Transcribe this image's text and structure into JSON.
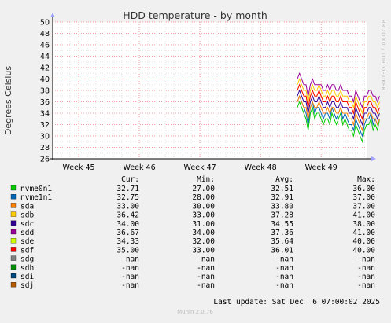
{
  "chart_data": {
    "type": "line",
    "title": "HDD temperature - by month",
    "ylabel": "Degrees Celsius",
    "side_label": "RRDTOOL / TOBI OETIKER",
    "ylim": [
      26,
      50
    ],
    "y_ticks": [
      26,
      28,
      30,
      32,
      34,
      36,
      38,
      40,
      42,
      44,
      46,
      48,
      50
    ],
    "x_ticks": [
      "Week 45",
      "Week 46",
      "Week 47",
      "Week 48",
      "Week 49"
    ],
    "x_tick_days": [
      3,
      10,
      17,
      24,
      31
    ],
    "xlim_days": [
      0,
      36.25
    ],
    "data_start_day": 28.25,
    "data_step_days": 0.25,
    "grid": true,
    "legend_headers": [
      "Cur:",
      "Min:",
      "Avg:",
      "Max:"
    ],
    "series": [
      {
        "name": "nvme0n1",
        "color": "#00cc00",
        "cur": "32.71",
        "min": "27.00",
        "avg": "32.51",
        "max": "36.00",
        "values": [
          35,
          36,
          35,
          34,
          33,
          31,
          34,
          35,
          33,
          34,
          34,
          33,
          32,
          33,
          33,
          32,
          34,
          33,
          32,
          33,
          34,
          32,
          33,
          32,
          31,
          31,
          30,
          32,
          31,
          30,
          29,
          31,
          32,
          32,
          33,
          31,
          32,
          31,
          33
        ]
      },
      {
        "name": "nvme1n1",
        "color": "#0066b3",
        "cur": "32.75",
        "min": "28.00",
        "avg": "32.91",
        "max": "37.00",
        "values": [
          36,
          37,
          36,
          35,
          34,
          32,
          35,
          36,
          34,
          35,
          35,
          34,
          33,
          34,
          34,
          33,
          35,
          34,
          33,
          34,
          35,
          33,
          34,
          33,
          32,
          32,
          31,
          33,
          32,
          31,
          30,
          32,
          33,
          33,
          34,
          32,
          33,
          32,
          33
        ]
      },
      {
        "name": "sda",
        "color": "#ff8000",
        "cur": "33.00",
        "min": "30.00",
        "avg": "33.80",
        "max": "37.00",
        "values": [
          36,
          37,
          36,
          35,
          35,
          33,
          35,
          36,
          35,
          35,
          36,
          35,
          34,
          34,
          35,
          34,
          35,
          35,
          34,
          34,
          35,
          34,
          34,
          34,
          33,
          33,
          32,
          34,
          33,
          32,
          31,
          33,
          33,
          34,
          34,
          33,
          33,
          32,
          33
        ]
      },
      {
        "name": "sdb",
        "color": "#ffcc00",
        "cur": "36.42",
        "min": "33.00",
        "avg": "37.28",
        "max": "41.00",
        "values": [
          39,
          40,
          39,
          38,
          38,
          36,
          38,
          39,
          38,
          38,
          39,
          38,
          37,
          37,
          38,
          37,
          38,
          38,
          37,
          37,
          38,
          37,
          37,
          37,
          36,
          36,
          35,
          37,
          36,
          35,
          34,
          36,
          36,
          37,
          37,
          36,
          36,
          35,
          36
        ]
      },
      {
        "name": "sdc",
        "color": "#330099",
        "cur": "34.00",
        "min": "31.00",
        "avg": "34.55",
        "max": "38.00",
        "values": [
          37,
          38,
          37,
          36,
          36,
          34,
          36,
          37,
          36,
          36,
          37,
          36,
          35,
          35,
          36,
          35,
          36,
          36,
          35,
          35,
          36,
          35,
          35,
          35,
          34,
          34,
          33,
          35,
          34,
          33,
          32,
          34,
          34,
          35,
          35,
          34,
          34,
          33,
          34
        ]
      },
      {
        "name": "sdd",
        "color": "#990099",
        "cur": "36.67",
        "min": "34.00",
        "avg": "37.36",
        "max": "41.00",
        "values": [
          40,
          41,
          40,
          39,
          39,
          37,
          39,
          40,
          39,
          39,
          39,
          39,
          38,
          38,
          39,
          38,
          39,
          39,
          38,
          38,
          39,
          38,
          38,
          38,
          37,
          37,
          36,
          38,
          37,
          36,
          35,
          37,
          37,
          38,
          38,
          37,
          37,
          36,
          37
        ]
      },
      {
        "name": "sde",
        "color": "#ccff00",
        "cur": "34.33",
        "min": "32.00",
        "avg": "35.64",
        "max": "40.00",
        "values": [
          38,
          39,
          38,
          37,
          37,
          35,
          37,
          38,
          37,
          37,
          38,
          37,
          36,
          36,
          37,
          36,
          37,
          37,
          36,
          36,
          37,
          36,
          36,
          36,
          35,
          35,
          34,
          36,
          35,
          34,
          33,
          35,
          35,
          36,
          36,
          35,
          35,
          34,
          34
        ]
      },
      {
        "name": "sdf",
        "color": "#ff0000",
        "cur": "35.00",
        "min": "33.00",
        "avg": "36.01",
        "max": "40.00",
        "values": [
          38,
          39,
          38,
          37,
          37,
          35,
          37,
          38,
          37,
          37,
          38,
          37,
          36,
          36,
          37,
          36,
          37,
          37,
          36,
          36,
          37,
          36,
          36,
          36,
          35,
          35,
          34,
          36,
          35,
          34,
          33,
          35,
          35,
          36,
          36,
          35,
          35,
          34,
          35
        ]
      },
      {
        "name": "sdg",
        "color": "#808080",
        "cur": "-nan",
        "min": "-nan",
        "avg": "-nan",
        "max": "-nan",
        "values": []
      },
      {
        "name": "sdh",
        "color": "#008f00",
        "cur": "-nan",
        "min": "-nan",
        "avg": "-nan",
        "max": "-nan",
        "values": []
      },
      {
        "name": "sdi",
        "color": "#00487d",
        "cur": "-nan",
        "min": "-nan",
        "avg": "-nan",
        "max": "-nan",
        "values": []
      },
      {
        "name": "sdj",
        "color": "#b35a00",
        "cur": "-nan",
        "min": "-nan",
        "avg": "-nan",
        "max": "-nan",
        "values": []
      }
    ],
    "last_update": "Last update: Sat Dec  6 07:00:02 2025",
    "footer": "Munin 2.0.76"
  }
}
